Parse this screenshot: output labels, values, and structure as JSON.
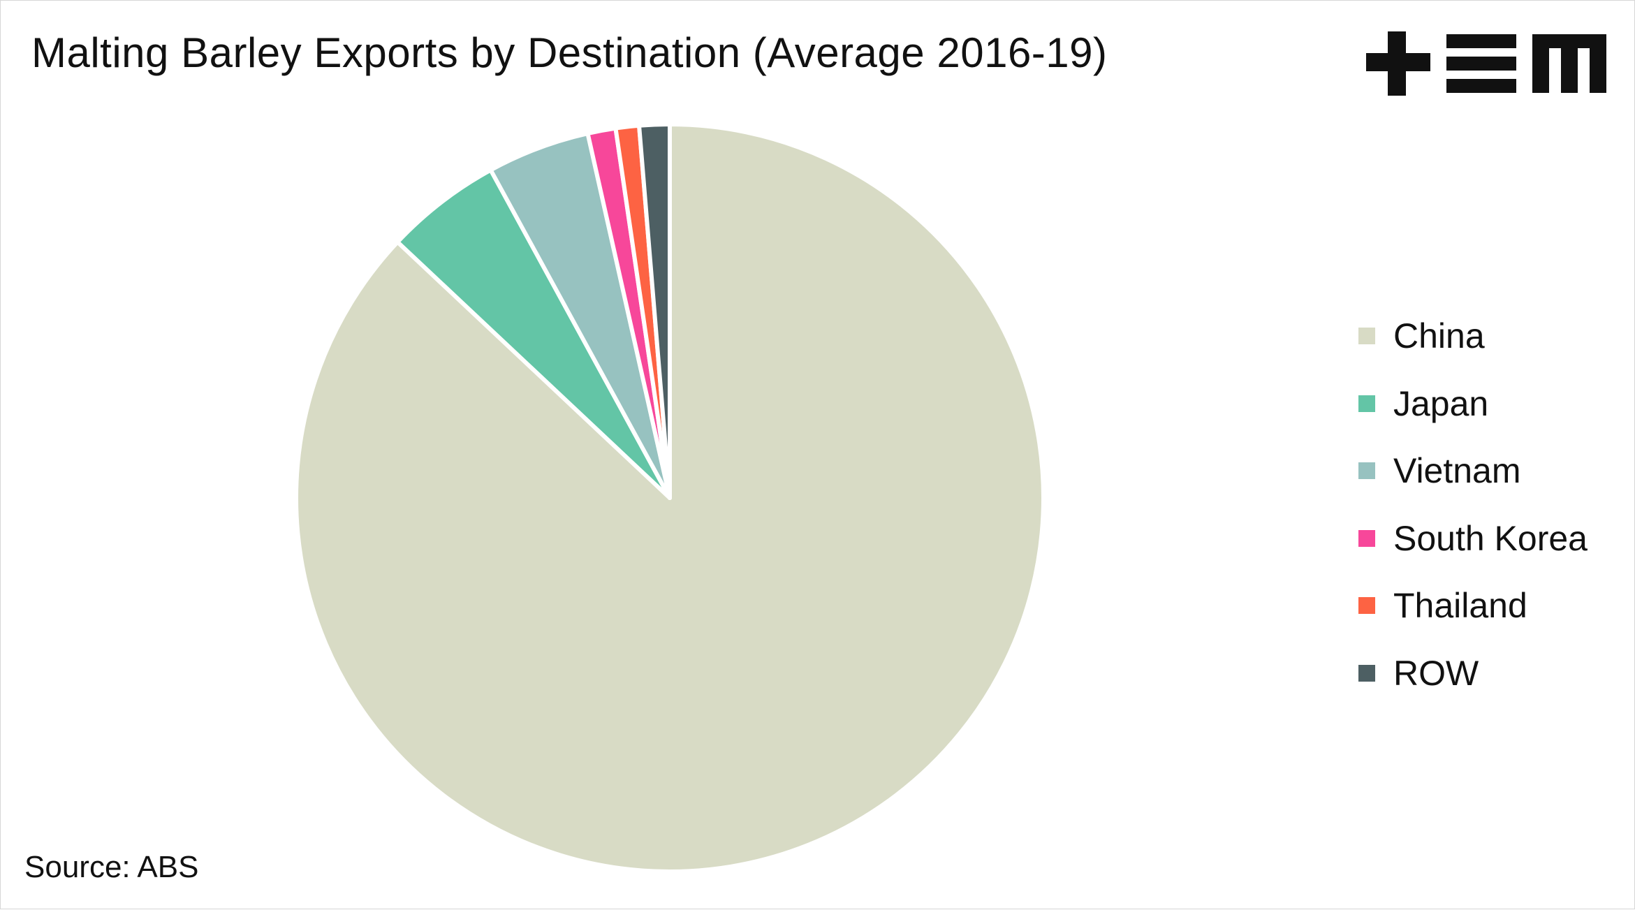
{
  "chart_data": {
    "type": "pie",
    "title": "Malting Barley Exports by Destination (Average 2016-19)",
    "source": "Source: ABS",
    "start_angle_deg": 0,
    "direction": "clockwise",
    "legend_position": "right",
    "slices": [
      {
        "label": "China",
        "value": 86.4,
        "color": "#d8dbc5"
      },
      {
        "label": "Japan",
        "value": 5.0,
        "color": "#63c5a6"
      },
      {
        "label": "Vietnam",
        "value": 4.4,
        "color": "#97c2c0"
      },
      {
        "label": "South Korea",
        "value": 1.2,
        "color": "#f7479a"
      },
      {
        "label": "Thailand",
        "value": 1.0,
        "color": "#fd6343"
      },
      {
        "label": "ROW",
        "value": 1.3,
        "color": "#4d5f63"
      }
    ]
  },
  "logo": {
    "name": "tem-logo",
    "alt_text": "+EM",
    "color": "#111111"
  }
}
